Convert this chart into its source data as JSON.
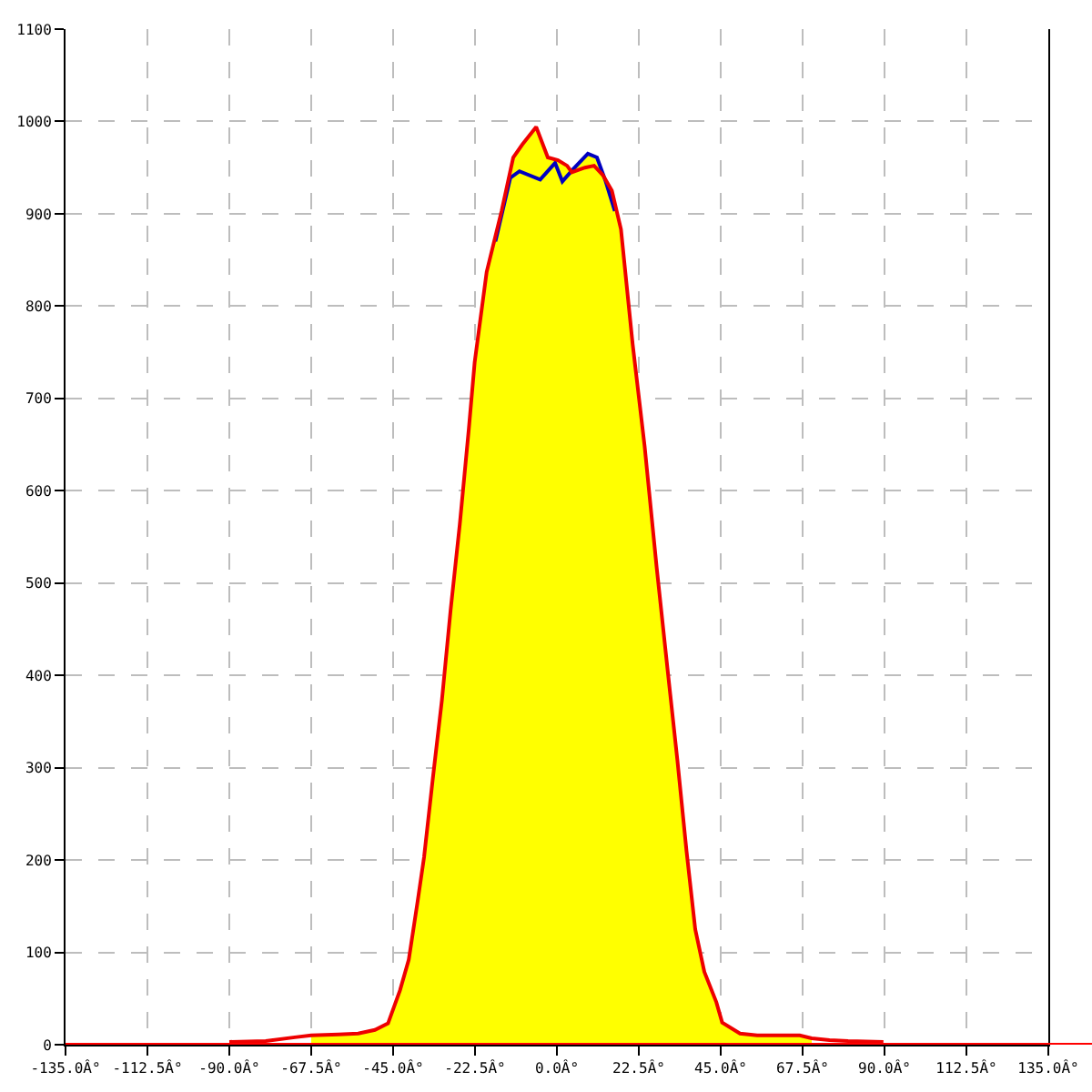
{
  "chart_data": {
    "type": "area",
    "xlim": [
      -135,
      135
    ],
    "xticks": [
      {
        "value": -135,
        "label": "-135.0Â°"
      },
      {
        "value": -112.5,
        "label": "-112.5Â°"
      },
      {
        "value": -90,
        "label": "-90.0Â°"
      },
      {
        "value": -67.5,
        "label": "-67.5Â°"
      },
      {
        "value": -45,
        "label": "-45.0Â°"
      },
      {
        "value": -22.5,
        "label": "-22.5Â°"
      },
      {
        "value": 0,
        "label": "0.0Â°"
      },
      {
        "value": 22.5,
        "label": "22.5Â°"
      },
      {
        "value": 45,
        "label": "45.0Â°"
      },
      {
        "value": 67.5,
        "label": "67.5Â°"
      },
      {
        "value": 90,
        "label": "90.0Â°"
      },
      {
        "value": 112.5,
        "label": "112.5Â°"
      },
      {
        "value": 135,
        "label": "135.0Â°"
      }
    ],
    "ylim": [
      0,
      1100
    ],
    "yticks": [
      0,
      100,
      200,
      300,
      400,
      500,
      600,
      700,
      800,
      900,
      1000,
      1100
    ],
    "grid": true,
    "ref_lines": [
      {
        "axis": "y",
        "value": 0,
        "color": "#ff0000"
      }
    ],
    "series": [
      {
        "color": "#ffff00",
        "x": [
          -67.5,
          -60,
          -54.6,
          -50,
          -46.4,
          -43.1,
          -40.7,
          -38.2,
          -36.5,
          -34.1,
          -31.6,
          -29.2,
          -26.7,
          -24.2,
          -22.6,
          -19.3,
          -15.2,
          -12,
          -9.5,
          -5.7,
          -2.5,
          -0.5,
          0.3,
          2.8,
          4.1,
          7.7,
          8.5,
          11,
          13.4,
          15.1,
          17.6,
          20.8,
          24.1,
          27.4,
          30.6,
          33.1,
          35.6,
          38,
          40.5,
          43.8,
          45.4,
          50.3,
          55,
          66.7,
          70
        ],
        "values": [
          10,
          11,
          12,
          16,
          23,
          59,
          92,
          157,
          203,
          288,
          373,
          471,
          563,
          667,
          739,
          837,
          903,
          961,
          975,
          994,
          961,
          958,
          958,
          952,
          947,
          960,
          965,
          961,
          938,
          925,
          883,
          759,
          648,
          517,
          399,
          308,
          210,
          125,
          79,
          46,
          24,
          12,
          10,
          10,
          7
        ]
      },
      {
        "type": "line",
        "color": "#0000c0",
        "x": [
          -16.9,
          -12.8,
          -10.3,
          -4.6,
          -0.5,
          1.5,
          4.4,
          8.5,
          11,
          13.4,
          15.9
        ],
        "values": [
          870,
          939,
          946,
          937,
          955,
          935,
          948,
          965,
          961,
          935,
          903
        ]
      },
      {
        "type": "line",
        "color": "#ee0000",
        "x": [
          -90,
          -80,
          -72,
          -67.5,
          -60,
          -54.6,
          -50,
          -46.4,
          -43.1,
          -40.7,
          -38.2,
          -36.5,
          -34.1,
          -31.6,
          -29.2,
          -26.7,
          -24.2,
          -22.6,
          -19.3,
          -15.2,
          -12,
          -9.5,
          -5.7,
          -2.5,
          0.3,
          2.8,
          4.1,
          7.7,
          10.2,
          12.6,
          15.1,
          17.6,
          20.8,
          24.1,
          27.4,
          30.6,
          33.1,
          35.6,
          38,
          40.5,
          43.8,
          45.4,
          50.3,
          55,
          66.7,
          70,
          74.9,
          80,
          89.7
        ],
        "values": [
          3,
          4,
          8,
          10,
          11,
          12,
          16,
          23,
          59,
          92,
          157,
          203,
          288,
          373,
          471,
          563,
          667,
          739,
          837,
          903,
          961,
          975,
          994,
          961,
          958,
          952,
          945,
          950,
          952,
          942,
          925,
          883,
          759,
          648,
          517,
          399,
          308,
          210,
          125,
          79,
          46,
          24,
          12,
          10,
          10,
          7,
          5,
          4,
          3
        ]
      }
    ]
  }
}
